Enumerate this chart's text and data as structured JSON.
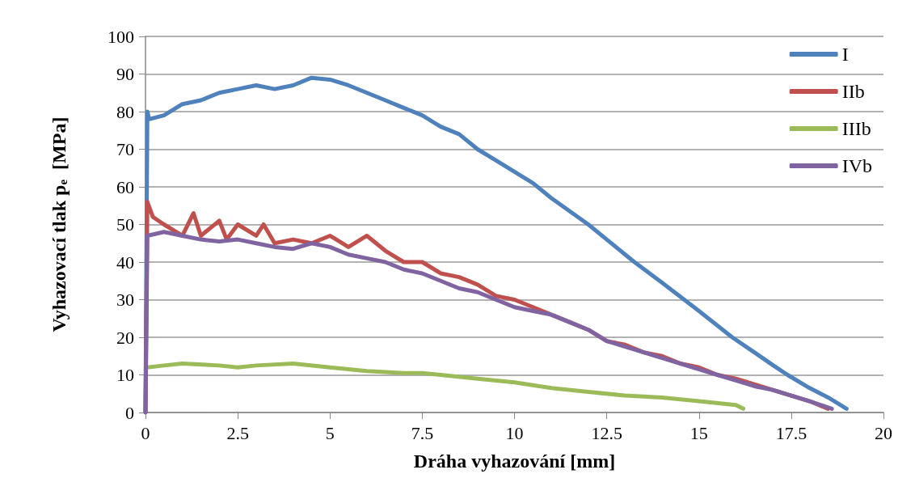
{
  "chart_data": {
    "type": "line",
    "xlabel": "Dráha vyhazování [mm]",
    "ylabel": "Vyhazovací tlak p$_{e}$  [MPa]",
    "xlim": [
      0,
      20
    ],
    "xticks": [
      0,
      2.5,
      5,
      7.5,
      10,
      12.5,
      15,
      17.5,
      20
    ],
    "ylim": [
      0,
      100
    ],
    "yticks": [
      0,
      10,
      20,
      30,
      40,
      50,
      60,
      70,
      80,
      90,
      100
    ],
    "grid": "y",
    "legend": "top right",
    "marker": "none",
    "line_style": "solid",
    "series": [
      {
        "name": "I",
        "color": "#4f81bd",
        "x": [
          0,
          0.05,
          0.1,
          0.5,
          1,
          1.5,
          2,
          2.5,
          3,
          3.5,
          4,
          4.5,
          5,
          5.5,
          6,
          6.5,
          7,
          7.5,
          8,
          8.5,
          9,
          9.5,
          10,
          10.5,
          11,
          11.5,
          12,
          12.5,
          13,
          13.25,
          14,
          14.6,
          15,
          15.9,
          16.5,
          17,
          17.4,
          18,
          18.5,
          19
        ],
        "values": [
          0,
          80,
          78,
          79,
          82,
          83,
          85,
          86,
          87,
          86,
          87,
          89,
          88.5,
          87,
          85,
          83,
          81,
          79,
          76,
          74,
          70,
          67,
          64,
          61,
          57,
          53.5,
          50,
          46,
          42,
          40,
          34.5,
          30,
          27,
          20,
          16,
          12.6,
          10,
          6.5,
          4,
          1
        ]
      },
      {
        "name": "IIb",
        "color": "#c0504d",
        "x": [
          0,
          0.05,
          0.2,
          0.5,
          1,
          1.3,
          1.5,
          2,
          2.2,
          2.5,
          3,
          3.2,
          3.5,
          4,
          4.5,
          5,
          5.5,
          6,
          6.5,
          7,
          7.5,
          8,
          8.5,
          9,
          9.5,
          10,
          10.5,
          11,
          11.5,
          12,
          12.5,
          13,
          13.5,
          14,
          14.5,
          15,
          15.5,
          16,
          16.5,
          17,
          17.5,
          18,
          18.5
        ],
        "values": [
          0,
          56,
          52,
          50,
          47,
          53,
          47,
          51,
          46,
          50,
          47,
          50,
          45,
          46,
          45,
          47,
          44,
          47,
          43,
          40,
          40,
          37,
          36,
          34,
          31,
          30,
          28,
          26,
          24,
          22,
          19,
          18,
          16,
          15,
          13,
          12,
          10,
          9,
          7.5,
          6,
          4.5,
          3,
          1
        ]
      },
      {
        "name": "IIIb",
        "color": "#9bbb59",
        "x": [
          0.05,
          0.5,
          1,
          2,
          2.5,
          3,
          4,
          5,
          6,
          7,
          7.5,
          8,
          9,
          10,
          11,
          12,
          13,
          14,
          15,
          16,
          16.2
        ],
        "values": [
          12,
          12.5,
          13,
          12.5,
          12,
          12.5,
          13,
          12,
          11,
          10.5,
          10.5,
          10,
          9,
          8,
          6.5,
          5.5,
          4.5,
          4,
          3,
          2,
          1
        ]
      },
      {
        "name": "IVb",
        "color": "#8064a2",
        "x": [
          0,
          0.05,
          0.5,
          1,
          1.5,
          2,
          2.5,
          3,
          3.5,
          4,
          4.5,
          5,
          5.5,
          6,
          6.5,
          7,
          7.5,
          8,
          8.5,
          9,
          9.5,
          10,
          10.5,
          11,
          11.5,
          12,
          12.5,
          13,
          13.5,
          14,
          14.5,
          15,
          15.5,
          16,
          16.5,
          17,
          17.5,
          18,
          18.6
        ],
        "values": [
          0,
          47,
          48,
          47,
          46,
          45.5,
          46,
          45,
          44,
          43.5,
          45,
          44,
          42,
          41,
          40,
          38,
          37,
          35,
          33,
          32,
          30,
          28,
          27,
          26,
          24,
          22,
          19,
          17.5,
          16,
          14.5,
          13,
          11.5,
          10,
          8.5,
          7,
          6,
          4.5,
          3,
          1
        ]
      }
    ]
  }
}
